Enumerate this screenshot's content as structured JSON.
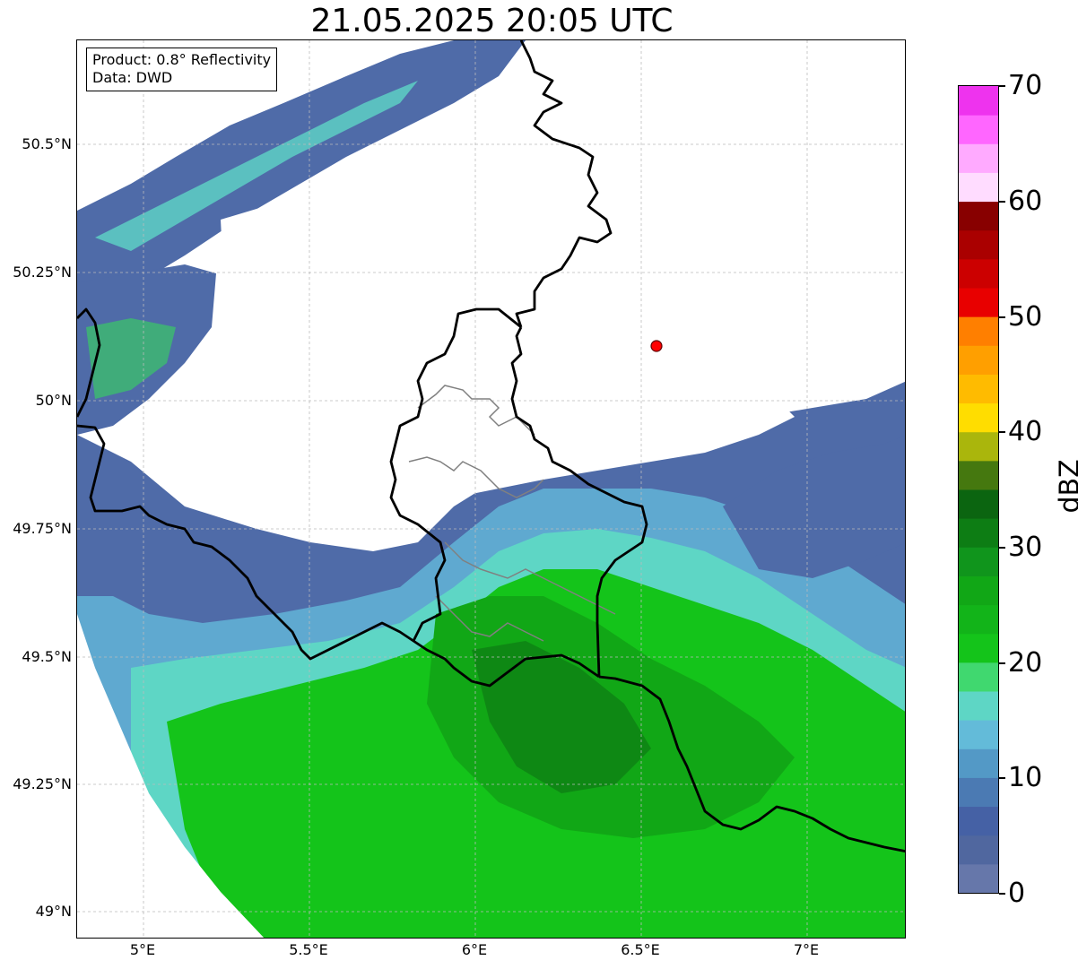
{
  "title": "21.05.2025 20:05 UTC",
  "info": {
    "product": "Product: 0.8° Reflectivity",
    "source": "Data: DWD"
  },
  "lat_ticks": [
    "50.5°N",
    "50.25°N",
    "50°N",
    "49.75°N",
    "49.5°N",
    "49.25°N",
    "49°N"
  ],
  "lon_ticks": [
    "5°E",
    "5.5°E",
    "6°E",
    "6.5°E",
    "7°E"
  ],
  "colorbar": {
    "unit": "dBZ",
    "tick_labels": [
      "0",
      "10",
      "20",
      "30",
      "40",
      "50",
      "60",
      "70"
    ],
    "range": [
      0,
      70
    ],
    "colors": [
      "#6677aa",
      "#50679f",
      "#4561a5",
      "#4b7ab3",
      "#5399c6",
      "#63bbd9",
      "#5ed6c5",
      "#40d86f",
      "#14c41a",
      "#12b419",
      "#11a716",
      "#10951c",
      "#0d7d14",
      "#0b6510",
      "#45780f",
      "#aab60c",
      "#ffdd00",
      "#ffbb00",
      "#ff9f00",
      "#ff7f00",
      "#e80000",
      "#cc0000",
      "#aa0000",
      "#880000",
      "#ffdcff",
      "#ffaaff",
      "#ff66ff",
      "#ee33ee"
    ]
  },
  "map_style": {
    "no_echo": "#ffffff",
    "grid": "#bbbbbb",
    "border": "#000000",
    "state_border": "#808080",
    "marker": "#ff0000"
  },
  "marker": {
    "lat": 50.11,
    "lon": 6.55
  },
  "extent": {
    "lon": [
      4.8,
      7.3
    ],
    "lat": [
      48.95,
      50.7
    ]
  }
}
